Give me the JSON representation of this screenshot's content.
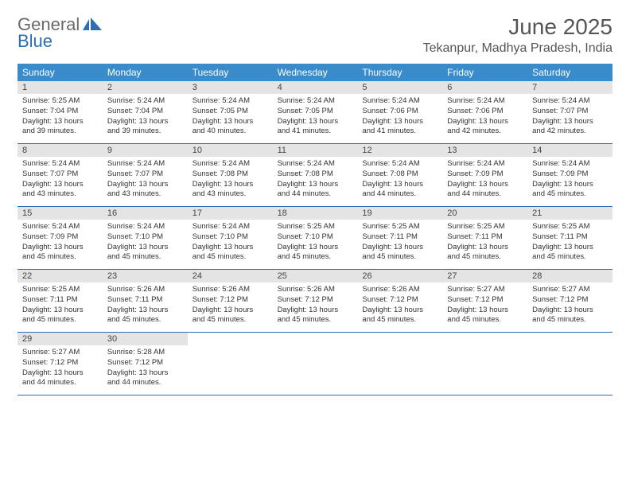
{
  "brand": {
    "part1": "General",
    "part2": "Blue"
  },
  "colors": {
    "header_bg": "#3a8bc9",
    "header_text": "#ffffff",
    "rule": "#2a6fb5",
    "daybar_bg": "#e4e4e4",
    "body_text": "#333333",
    "title_text": "#555555",
    "logo_gray": "#6a6a6a",
    "logo_blue": "#2a6fb5"
  },
  "title": "June 2025",
  "location": "Tekanpur, Madhya Pradesh, India",
  "weekdays": [
    "Sunday",
    "Monday",
    "Tuesday",
    "Wednesday",
    "Thursday",
    "Friday",
    "Saturday"
  ],
  "weeks": [
    [
      {
        "n": "1",
        "sr": "5:25 AM",
        "ss": "7:04 PM",
        "dl": "13 hours and 39 minutes."
      },
      {
        "n": "2",
        "sr": "5:24 AM",
        "ss": "7:04 PM",
        "dl": "13 hours and 39 minutes."
      },
      {
        "n": "3",
        "sr": "5:24 AM",
        "ss": "7:05 PM",
        "dl": "13 hours and 40 minutes."
      },
      {
        "n": "4",
        "sr": "5:24 AM",
        "ss": "7:05 PM",
        "dl": "13 hours and 41 minutes."
      },
      {
        "n": "5",
        "sr": "5:24 AM",
        "ss": "7:06 PM",
        "dl": "13 hours and 41 minutes."
      },
      {
        "n": "6",
        "sr": "5:24 AM",
        "ss": "7:06 PM",
        "dl": "13 hours and 42 minutes."
      },
      {
        "n": "7",
        "sr": "5:24 AM",
        "ss": "7:07 PM",
        "dl": "13 hours and 42 minutes."
      }
    ],
    [
      {
        "n": "8",
        "sr": "5:24 AM",
        "ss": "7:07 PM",
        "dl": "13 hours and 43 minutes."
      },
      {
        "n": "9",
        "sr": "5:24 AM",
        "ss": "7:07 PM",
        "dl": "13 hours and 43 minutes."
      },
      {
        "n": "10",
        "sr": "5:24 AM",
        "ss": "7:08 PM",
        "dl": "13 hours and 43 minutes."
      },
      {
        "n": "11",
        "sr": "5:24 AM",
        "ss": "7:08 PM",
        "dl": "13 hours and 44 minutes."
      },
      {
        "n": "12",
        "sr": "5:24 AM",
        "ss": "7:08 PM",
        "dl": "13 hours and 44 minutes."
      },
      {
        "n": "13",
        "sr": "5:24 AM",
        "ss": "7:09 PM",
        "dl": "13 hours and 44 minutes."
      },
      {
        "n": "14",
        "sr": "5:24 AM",
        "ss": "7:09 PM",
        "dl": "13 hours and 45 minutes."
      }
    ],
    [
      {
        "n": "15",
        "sr": "5:24 AM",
        "ss": "7:09 PM",
        "dl": "13 hours and 45 minutes."
      },
      {
        "n": "16",
        "sr": "5:24 AM",
        "ss": "7:10 PM",
        "dl": "13 hours and 45 minutes."
      },
      {
        "n": "17",
        "sr": "5:24 AM",
        "ss": "7:10 PM",
        "dl": "13 hours and 45 minutes."
      },
      {
        "n": "18",
        "sr": "5:25 AM",
        "ss": "7:10 PM",
        "dl": "13 hours and 45 minutes."
      },
      {
        "n": "19",
        "sr": "5:25 AM",
        "ss": "7:11 PM",
        "dl": "13 hours and 45 minutes."
      },
      {
        "n": "20",
        "sr": "5:25 AM",
        "ss": "7:11 PM",
        "dl": "13 hours and 45 minutes."
      },
      {
        "n": "21",
        "sr": "5:25 AM",
        "ss": "7:11 PM",
        "dl": "13 hours and 45 minutes."
      }
    ],
    [
      {
        "n": "22",
        "sr": "5:25 AM",
        "ss": "7:11 PM",
        "dl": "13 hours and 45 minutes."
      },
      {
        "n": "23",
        "sr": "5:26 AM",
        "ss": "7:11 PM",
        "dl": "13 hours and 45 minutes."
      },
      {
        "n": "24",
        "sr": "5:26 AM",
        "ss": "7:12 PM",
        "dl": "13 hours and 45 minutes."
      },
      {
        "n": "25",
        "sr": "5:26 AM",
        "ss": "7:12 PM",
        "dl": "13 hours and 45 minutes."
      },
      {
        "n": "26",
        "sr": "5:26 AM",
        "ss": "7:12 PM",
        "dl": "13 hours and 45 minutes."
      },
      {
        "n": "27",
        "sr": "5:27 AM",
        "ss": "7:12 PM",
        "dl": "13 hours and 45 minutes."
      },
      {
        "n": "28",
        "sr": "5:27 AM",
        "ss": "7:12 PM",
        "dl": "13 hours and 45 minutes."
      }
    ],
    [
      {
        "n": "29",
        "sr": "5:27 AM",
        "ss": "7:12 PM",
        "dl": "13 hours and 44 minutes."
      },
      {
        "n": "30",
        "sr": "5:28 AM",
        "ss": "7:12 PM",
        "dl": "13 hours and 44 minutes."
      },
      null,
      null,
      null,
      null,
      null
    ]
  ],
  "labels": {
    "sunrise": "Sunrise: ",
    "sunset": "Sunset: ",
    "daylight": "Daylight: "
  }
}
